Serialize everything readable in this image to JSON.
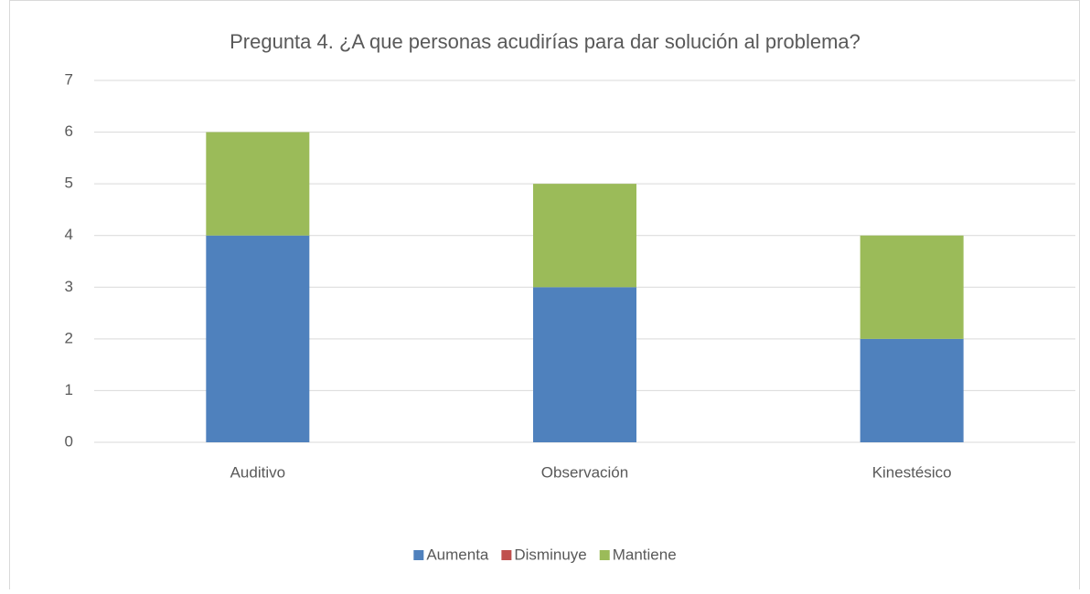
{
  "chart_data": {
    "type": "stacked_bar",
    "title": "Pregunta 4. ¿A que personas acudirías para dar solución al problema?",
    "categories": [
      "Auditivo",
      "Observación",
      "Kinestésico"
    ],
    "series": [
      {
        "name": "Aumenta",
        "color": "#4f81bd",
        "values": [
          4,
          3,
          2
        ]
      },
      {
        "name": "Disminuye",
        "color": "#c0504d",
        "values": [
          0,
          0,
          0
        ]
      },
      {
        "name": "Mantiene",
        "color": "#9bbb59",
        "values": [
          2,
          2,
          2
        ]
      }
    ],
    "ylim": [
      0,
      7
    ],
    "yticks": [
      0,
      1,
      2,
      3,
      4,
      5,
      6,
      7
    ],
    "grid": true,
    "legend": "bottom"
  }
}
